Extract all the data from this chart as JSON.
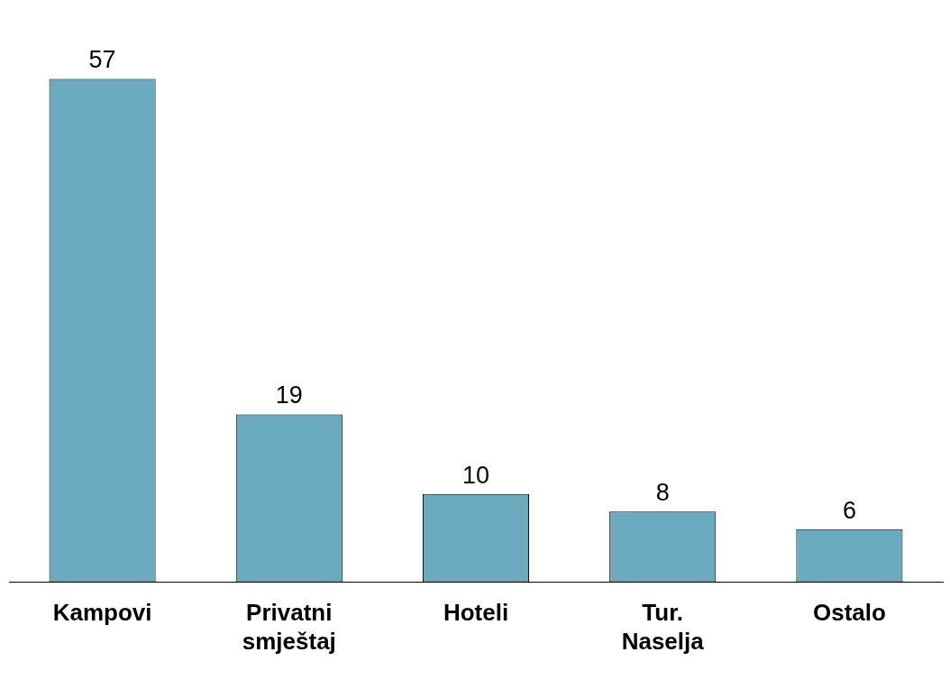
{
  "chart_data": {
    "type": "bar",
    "categories": [
      "Kampovi",
      "Privatni smještaj",
      "Hoteli",
      "Tur. Naselja",
      "Ostalo"
    ],
    "values": [
      57,
      19,
      10,
      8,
      6
    ],
    "color": "#6aabbf",
    "data_labels": true,
    "grid": false,
    "legend": false
  }
}
